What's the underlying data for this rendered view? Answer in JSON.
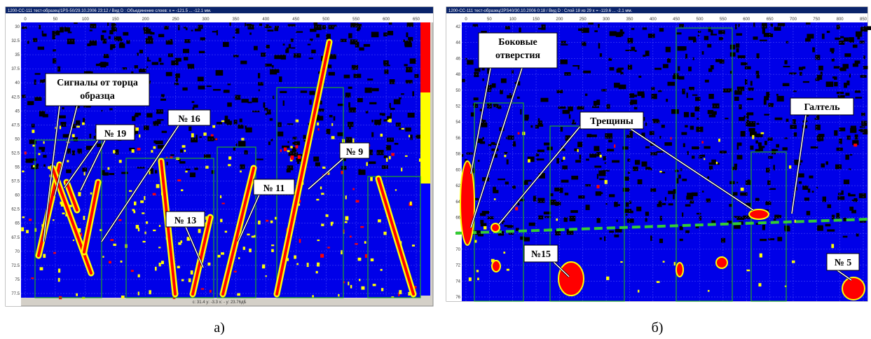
{
  "panel_a": {
    "window_title": "1200-CC-111 тест-образец/1PS-50/29.10.2006 23:12 / Вид D : Объединение слоев: x = -121.5 ... -12.1 мм.",
    "x_ticks": [
      "0",
      "50",
      "100",
      "150",
      "200",
      "250",
      "300",
      "350",
      "400",
      "450",
      "500",
      "550",
      "600",
      "650"
    ],
    "y_ticks": [
      "30",
      "32.5",
      "35",
      "37.5",
      "40",
      "42.5",
      "45",
      "47.5",
      "50",
      "52.5",
      "55",
      "57.5",
      "60",
      "62.5",
      "65",
      "67.5",
      "70",
      "72.5",
      "75",
      "77.5"
    ],
    "status": "c: 31.4  y: -3.3  x: -  y: 23.76дБ",
    "annotations": [
      {
        "lines": [
          "Сигналы от торца",
          "образца"
        ]
      },
      {
        "lines": [
          "№ 19"
        ]
      },
      {
        "lines": [
          "№ 16"
        ]
      },
      {
        "lines": [
          "№ 13"
        ]
      },
      {
        "lines": [
          "№ 11"
        ]
      },
      {
        "lines": [
          "№ 9"
        ]
      }
    ],
    "caption": "а)"
  },
  "panel_b": {
    "window_title": "1200-CC-111 тест-образец/2PS40/30.10.2006 0:18 / Вид D : Слой 18 из 29  x = -119.6 ... -2.1 мм.",
    "x_ticks": [
      "0",
      "50",
      "100",
      "150",
      "200",
      "250",
      "300",
      "350",
      "400",
      "450",
      "500",
      "550",
      "600",
      "650",
      "700",
      "750",
      "800",
      "850"
    ],
    "y_ticks": [
      "42",
      "44",
      "46",
      "48",
      "50",
      "52",
      "54",
      "56",
      "58",
      "60",
      "62",
      "64",
      "66",
      "68",
      "70",
      "72",
      "74",
      "76"
    ],
    "annotations": [
      {
        "lines": [
          "Боковые",
          "отверстия"
        ]
      },
      {
        "lines": [
          "Трещины"
        ]
      },
      {
        "lines": [
          "Галтель"
        ]
      },
      {
        "lines": [
          "№15"
        ]
      },
      {
        "lines": [
          "№ 5"
        ]
      }
    ],
    "caption": "б)"
  }
}
